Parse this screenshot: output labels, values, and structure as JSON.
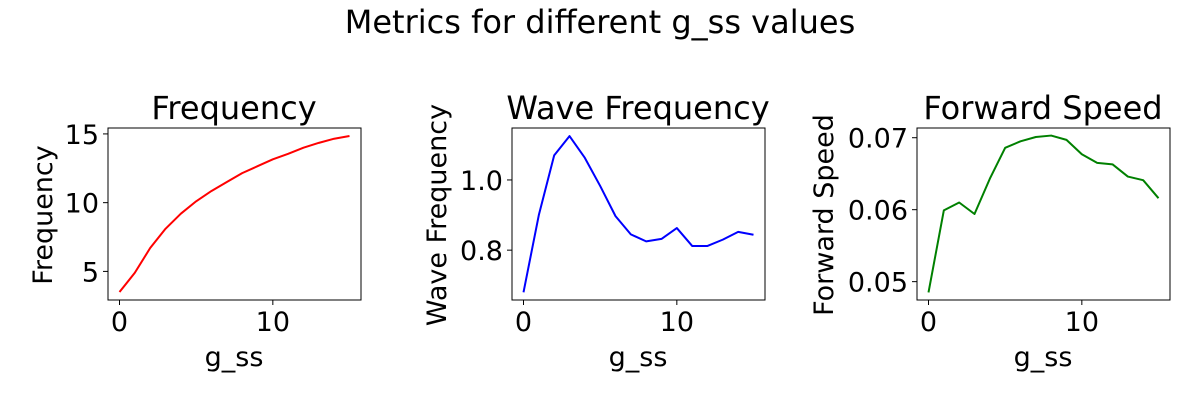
{
  "suptitle": "Metrics for different g_ss values",
  "chart_data": [
    {
      "type": "line",
      "title": "Frequency",
      "xlabel": "g_ss",
      "ylabel": "Frequency",
      "color": "#ff0000",
      "x": [
        0,
        1,
        2,
        3,
        4,
        5,
        6,
        7,
        8,
        9,
        10,
        11,
        12,
        13,
        14,
        15
      ],
      "y": [
        3.5,
        4.9,
        6.7,
        8.1,
        9.2,
        10.1,
        10.85,
        11.5,
        12.15,
        12.65,
        13.15,
        13.55,
        14.0,
        14.35,
        14.65,
        14.85
      ],
      "xlim": [
        -0.75,
        15.75
      ],
      "ylim": [
        2.92,
        15.43
      ],
      "xticks": [
        0,
        10
      ],
      "xticklabels": [
        "0",
        "10"
      ],
      "yticks": [
        5,
        10,
        15
      ],
      "yticklabels": [
        "5",
        "10",
        "15"
      ]
    },
    {
      "type": "line",
      "title": "Wave Frequency",
      "xlabel": "g_ss",
      "ylabel": "Wave Frequency",
      "color": "#0000ff",
      "x": [
        0,
        1,
        2,
        3,
        4,
        5,
        6,
        7,
        8,
        9,
        10,
        11,
        12,
        13,
        14,
        15
      ],
      "y": [
        0.68,
        0.9,
        1.07,
        1.125,
        1.063,
        0.983,
        0.897,
        0.845,
        0.825,
        0.832,
        0.863,
        0.812,
        0.812,
        0.83,
        0.852,
        0.844
      ],
      "xlim": [
        -0.75,
        15.75
      ],
      "ylim": [
        0.658,
        1.148
      ],
      "xticks": [
        0,
        10
      ],
      "xticklabels": [
        "0",
        "10"
      ],
      "yticks": [
        0.8,
        1.0
      ],
      "yticklabels": [
        "0.8",
        "1.0"
      ]
    },
    {
      "type": "line",
      "title": "Forward Speed",
      "xlabel": "g_ss",
      "ylabel": "Forward Speed",
      "color": "#008000",
      "x": [
        0,
        1,
        2,
        3,
        4,
        5,
        6,
        7,
        8,
        9,
        10,
        11,
        12,
        13,
        14,
        15
      ],
      "y": [
        0.0485,
        0.0599,
        0.061,
        0.0594,
        0.0643,
        0.0686,
        0.0695,
        0.0701,
        0.0703,
        0.0697,
        0.0677,
        0.0665,
        0.0663,
        0.0646,
        0.0641,
        0.0616
      ],
      "xlim": [
        -0.75,
        15.75
      ],
      "ylim": [
        0.04745,
        0.07135
      ],
      "xticks": [
        0,
        10
      ],
      "xticklabels": [
        "0",
        "10"
      ],
      "yticks": [
        0.05,
        0.06,
        0.07
      ],
      "yticklabels": [
        "0.05",
        "0.06",
        "0.07"
      ]
    }
  ]
}
